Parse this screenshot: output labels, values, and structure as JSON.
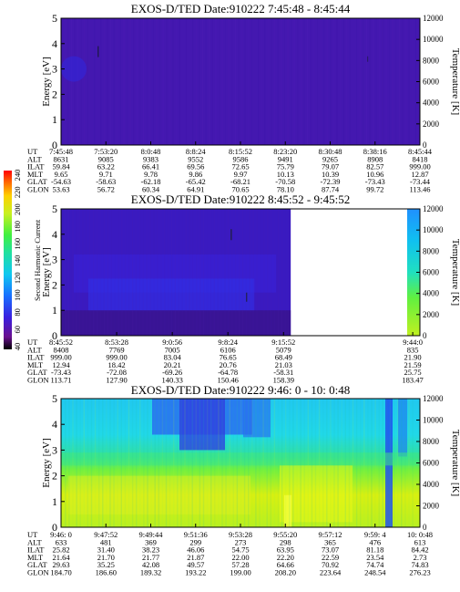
{
  "colorbar": {
    "ticks": [
      "40",
      "60",
      "80",
      "100",
      "120",
      "140",
      "160",
      "180",
      "200",
      "220",
      "240"
    ],
    "label": "Second Harmonic Current"
  },
  "row_labels": [
    "UT",
    "ALT",
    "ILAT",
    "MLT",
    "GLAT",
    "GLON"
  ],
  "chart_data": [
    {
      "type": "heatmap",
      "title": "EXOS-D/TED    Date:910222   7:45:48 - 8:45:44",
      "ylabel": "Energy [eV]",
      "ylabel_right": "Temperature [K]",
      "ylim": [
        0,
        5
      ],
      "yticks": [
        0,
        1,
        2,
        3,
        4,
        5
      ],
      "ylim_right": [
        0,
        12000
      ],
      "yticks_right": [
        0,
        2000,
        4000,
        6000,
        8000,
        10000,
        12000
      ],
      "data_extent": 1.0,
      "dominant_color": "#4418b0",
      "orbit_table": {
        "UT": [
          "7:45:48",
          "7:53:20",
          "8:0:48",
          "8:8:24",
          "8:15:52",
          "8:23:20",
          "8:30:48",
          "8:38:16",
          "8:45:44"
        ],
        "ALT": [
          "8631",
          "9085",
          "9383",
          "9552",
          "9586",
          "9491",
          "9265",
          "8908",
          "8418"
        ],
        "ILAT": [
          "59.84",
          "63.22",
          "66.41",
          "69.56",
          "72.65",
          "75.79",
          "79.07",
          "82.57",
          "999.00"
        ],
        "MLT": [
          "9.65",
          "9.71",
          "9.78",
          "9.86",
          "9.97",
          "10.13",
          "10.39",
          "10.96",
          "12.87"
        ],
        "GLAT": [
          "-54.63",
          "-58.63",
          "-62.18",
          "-65.42",
          "-68.21",
          "-70.58",
          "-72.39",
          "-73.43",
          "-73.44"
        ],
        "GLON": [
          "53.63",
          "56.72",
          "60.34",
          "64.91",
          "70.65",
          "78.10",
          "87.74",
          "99.72",
          "113.46"
        ]
      }
    },
    {
      "type": "heatmap",
      "title": "EXOS-D/TED    Date:910222   8:45:52 - 9:45:52",
      "ylabel": "Energy [eV]",
      "ylabel_right": "Temperature [K]",
      "ylim": [
        0,
        5
      ],
      "yticks": [
        0,
        1,
        2,
        3,
        4,
        5
      ],
      "ylim_right": [
        0,
        12000
      ],
      "yticks_right": [
        0,
        2000,
        4000,
        6000,
        8000,
        10000,
        12000
      ],
      "data_extent": 0.64,
      "dominant_color": "#3a1fd0",
      "orbit_table": {
        "UT": [
          "8:45:52",
          "8:53:28",
          "9:0:56",
          "9:8:24",
          "9:15:52",
          "9:44:0"
        ],
        "ALT": [
          "8408",
          "7769",
          "7005",
          "6106",
          "5079",
          "835"
        ],
        "ILAT": [
          "999.00",
          "999.00",
          "83.04",
          "76.65",
          "68.49",
          "21.90"
        ],
        "MLT": [
          "12.94",
          "18.42",
          "20.21",
          "20.76",
          "21.03",
          "21.59"
        ],
        "GLAT": [
          "-73.43",
          "-72.08",
          "-69.26",
          "-64.78",
          "-58.31",
          "25.75"
        ],
        "GLON": [
          "113.71",
          "127.90",
          "140.33",
          "150.46",
          "158.39",
          "183.47"
        ]
      }
    },
    {
      "type": "heatmap",
      "title": "EXOS-D/TED    Date:910222   9:46: 0 - 10: 0:48",
      "ylabel": "Energy [eV]",
      "ylabel_right": "Temperature [K]",
      "ylim": [
        0,
        5
      ],
      "yticks": [
        0,
        1,
        2,
        3,
        4,
        5
      ],
      "ylim_right": [
        0,
        12000
      ],
      "yticks_right": [
        0,
        2000,
        4000,
        6000,
        8000,
        10000,
        12000
      ],
      "data_extent": 1.0,
      "dominant_color": "#19d8f0",
      "orbit_table": {
        "UT": [
          "9:46: 0",
          "9:47:52",
          "9:49:44",
          "9:51:36",
          "9:53:28",
          "9:55:20",
          "9:57:12",
          "9:59: 4",
          "10: 0:48"
        ],
        "ALT": [
          "633",
          "481",
          "369",
          "299",
          "273",
          "298",
          "365",
          "476",
          "613"
        ],
        "ILAT": [
          "25.82",
          "31.40",
          "38.23",
          "46.06",
          "54.75",
          "63.95",
          "73.07",
          "81.18",
          "84.42"
        ],
        "MLT": [
          "21.64",
          "21.70",
          "21.77",
          "21.87",
          "22.00",
          "22.20",
          "22.59",
          "23.54",
          "2.73"
        ],
        "GLAT": [
          "29.63",
          "35.25",
          "42.08",
          "49.57",
          "57.28",
          "64.66",
          "70.92",
          "74.74",
          "74.83"
        ],
        "GLON": [
          "184.70",
          "186.60",
          "189.32",
          "193.22",
          "199.00",
          "208.20",
          "223.64",
          "248.54",
          "276.23"
        ]
      }
    }
  ]
}
